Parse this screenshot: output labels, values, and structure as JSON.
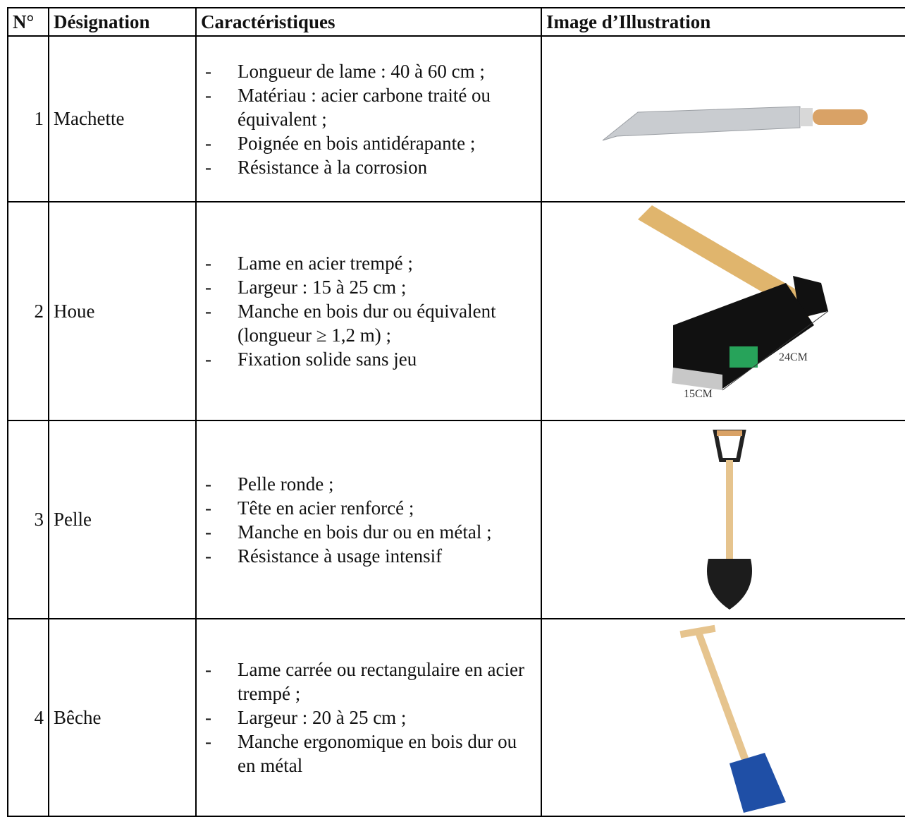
{
  "table": {
    "header": [
      "N°",
      "Désignation",
      "Caractéristiques",
      "Image d’Illustration"
    ],
    "rows": [
      {
        "number": "1",
        "designation": "Machette",
        "characteristics": [
          "Longueur de lame : 40 à 60 cm ;",
          "Matériau : acier carbone traité ou équivalent ;",
          "Poignée en bois antidérapante ;",
          "Résistance à la corrosion"
        ]
      },
      {
        "number": "2",
        "designation": "Houe",
        "characteristics": [
          "Lame en acier trempé ;",
          "Largeur : 15 à 25 cm ;",
          "Manche en bois dur ou équivalent (longueur ≥ 1,2 m) ;",
          "Fixation solide sans jeu"
        ]
      },
      {
        "number": "3",
        "designation": "Pelle",
        "characteristics": [
          "Pelle ronde ;",
          "Tête en acier renforcé ;",
          "Manche en bois dur ou en métal ;",
          "Résistance à usage intensif"
        ]
      },
      {
        "number": "4",
        "designation": "Bêche",
        "characteristics": [
          "Lame carrée ou rectangulaire en acier trempé ;",
          "Largeur : 20 à 25 cm ;",
          "Manche ergonomique en bois dur ou en métal"
        ]
      }
    ]
  }
}
